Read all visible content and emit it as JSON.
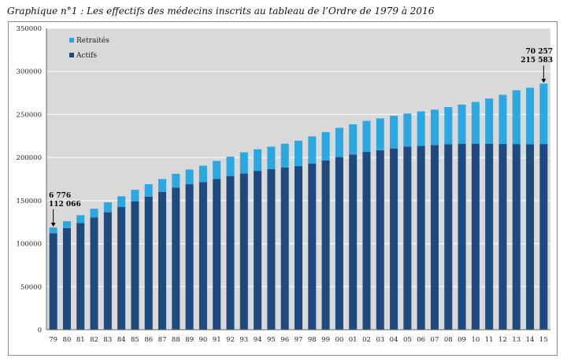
{
  "title": "Graphique n°1 : Les effectifs des médecins inscrits au tableau de l’Ordre de 1979 à 2016",
  "colors": {
    "retraites": "#2BA7E2",
    "actifs": "#1F4A80",
    "plot_bg": "#D9D9D9",
    "grid": "#ffffff"
  },
  "chart_data": {
    "type": "bar",
    "stacked": true,
    "title": "Graphique n°1 : Les effectifs des médecins inscrits au tableau de l’Ordre de 1979 à 2016",
    "xlabel": "",
    "ylabel": "",
    "ylim": [
      0,
      350000
    ],
    "yticks": [
      0,
      50000,
      100000,
      150000,
      200000,
      250000,
      300000,
      350000
    ],
    "categories": [
      "79",
      "80",
      "81",
      "82",
      "83",
      "84",
      "85",
      "86",
      "87",
      "88",
      "89",
      "90",
      "91",
      "92",
      "93",
      "94",
      "95",
      "96",
      "97",
      "98",
      "99",
      "00",
      "01",
      "02",
      "03",
      "04",
      "05",
      "06",
      "07",
      "08",
      "09",
      "10",
      "11",
      "12",
      "13",
      "14",
      "15"
    ],
    "series": [
      {
        "name": "Actifs",
        "values": [
          112066,
          118000,
          124000,
          130500,
          136500,
          142500,
          149000,
          154500,
          160000,
          165000,
          169000,
          171500,
          175000,
          178500,
          181500,
          184500,
          186500,
          188500,
          190000,
          193000,
          196500,
          200500,
          203500,
          206500,
          208500,
          210500,
          212500,
          213500,
          214500,
          215500,
          216000,
          216000,
          216000,
          215800,
          215600,
          215500,
          215583
        ]
      },
      {
        "name": "Retraités",
        "values": [
          6776,
          8000,
          9000,
          10000,
          11500,
          12500,
          13500,
          14500,
          15000,
          16000,
          17000,
          19000,
          21000,
          22500,
          24500,
          25000,
          26000,
          27500,
          29500,
          31500,
          33000,
          34000,
          35000,
          36000,
          37000,
          38000,
          38500,
          40000,
          41000,
          43000,
          45500,
          48500,
          52500,
          57000,
          62500,
          65500,
          70257
        ]
      }
    ],
    "legend": {
      "position": "top-left",
      "entries": [
        "Retraités",
        "Actifs"
      ]
    },
    "annotations": [
      {
        "category": "79",
        "lines": [
          "6 776",
          "112 066"
        ]
      },
      {
        "category": "15",
        "lines": [
          "70 257",
          "215 583"
        ]
      }
    ]
  }
}
